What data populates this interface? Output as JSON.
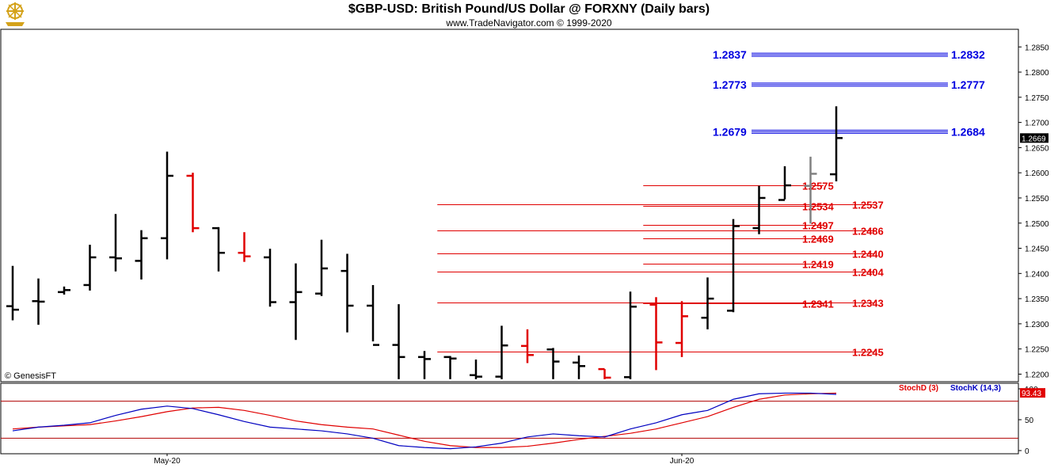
{
  "header": {
    "title": "$GBP-USD:  British Pound/US Dollar @ FORXNY  (Daily bars)",
    "copyright": "www.TradeNavigator.com © 1999-2020"
  },
  "watermark": "© GenesisFT",
  "logo_icon": "gold-ship-wheel-icon",
  "colors": {
    "up_bar": "#000000",
    "down_bar": "#e00000",
    "neutral_bar": "#808080",
    "blue_levels": "#0000e0",
    "red_levels": "#e00000",
    "stoch_d": "#e00000",
    "stoch_k": "#0000c0"
  },
  "chart_data": [
    {
      "type": "ohlc",
      "title": "$GBP-USD:  British Pound/US Dollar @ FORXNY  (Daily bars)",
      "x_tick_labels": [
        {
          "label": "May-20",
          "bar_index": 6
        },
        {
          "label": "Jun-20",
          "bar_index": 26
        }
      ],
      "y_axis": {
        "ylim": [
          1.2185,
          1.2885
        ],
        "ticks": [
          "1.2200",
          "1.2250",
          "1.2300",
          "1.2350",
          "1.2400",
          "1.2450",
          "1.2500",
          "1.2550",
          "1.2600",
          "1.2650",
          "1.2700",
          "1.2750",
          "1.2800",
          "1.2850"
        ]
      },
      "last_price_label": "1.2669",
      "bars": [
        {
          "o": 1.2335,
          "h": 1.2415,
          "l": 1.2307,
          "c": 1.2328,
          "color": "up"
        },
        {
          "o": 1.2345,
          "h": 1.239,
          "l": 1.2298,
          "c": 1.2344,
          "color": "up"
        },
        {
          "o": 1.2363,
          "h": 1.2374,
          "l": 1.2358,
          "c": 1.2367,
          "color": "up"
        },
        {
          "o": 1.2377,
          "h": 1.2457,
          "l": 1.2366,
          "c": 1.2432,
          "color": "up"
        },
        {
          "o": 1.2432,
          "h": 1.2518,
          "l": 1.2404,
          "c": 1.243,
          "color": "up"
        },
        {
          "o": 1.2425,
          "h": 1.2486,
          "l": 1.2388,
          "c": 1.247,
          "color": "up"
        },
        {
          "o": 1.247,
          "h": 1.2642,
          "l": 1.2428,
          "c": 1.2594,
          "color": "up"
        },
        {
          "o": 1.2594,
          "h": 1.26,
          "l": 1.2482,
          "c": 1.249,
          "color": "down"
        },
        {
          "o": 1.249,
          "h": 1.2492,
          "l": 1.2404,
          "c": 1.2441,
          "color": "up"
        },
        {
          "o": 1.2441,
          "h": 1.2482,
          "l": 1.2423,
          "c": 1.2434,
          "color": "down"
        },
        {
          "o": 1.2432,
          "h": 1.2449,
          "l": 1.2334,
          "c": 1.2343,
          "color": "up"
        },
        {
          "o": 1.2343,
          "h": 1.242,
          "l": 1.2268,
          "c": 1.2363,
          "color": "up"
        },
        {
          "o": 1.236,
          "h": 1.2467,
          "l": 1.2355,
          "c": 1.241,
          "color": "up"
        },
        {
          "o": 1.2405,
          "h": 1.2439,
          "l": 1.2283,
          "c": 1.2336,
          "color": "up"
        },
        {
          "o": 1.2336,
          "h": 1.2377,
          "l": 1.2265,
          "c": 1.2258,
          "color": "up"
        },
        {
          "o": 1.2258,
          "h": 1.2339,
          "l": 1.219,
          "c": 1.2234,
          "color": "up"
        },
        {
          "o": 1.2234,
          "h": 1.2246,
          "l": 1.219,
          "c": 1.223,
          "color": "up"
        },
        {
          "o": 1.2234,
          "h": 1.2236,
          "l": 1.219,
          "c": 1.2231,
          "color": "up"
        },
        {
          "o": 1.2198,
          "h": 1.2229,
          "l": 1.219,
          "c": 1.2195,
          "color": "up"
        },
        {
          "o": 1.2195,
          "h": 1.2296,
          "l": 1.219,
          "c": 1.2257,
          "color": "up"
        },
        {
          "o": 1.2256,
          "h": 1.2289,
          "l": 1.2222,
          "c": 1.2238,
          "color": "down"
        },
        {
          "o": 1.2249,
          "h": 1.2252,
          "l": 1.219,
          "c": 1.2225,
          "color": "up"
        },
        {
          "o": 1.2223,
          "h": 1.2237,
          "l": 1.219,
          "c": 1.2216,
          "color": "up"
        },
        {
          "o": 1.221,
          "h": 1.221,
          "l": 1.219,
          "c": 1.2193,
          "color": "down"
        },
        {
          "o": 1.2194,
          "h": 1.2364,
          "l": 1.219,
          "c": 1.2334,
          "color": "up"
        },
        {
          "o": 1.2338,
          "h": 1.2353,
          "l": 1.2208,
          "c": 1.2263,
          "color": "down"
        },
        {
          "o": 1.2262,
          "h": 1.2345,
          "l": 1.2234,
          "c": 1.2315,
          "color": "down"
        },
        {
          "o": 1.2312,
          "h": 1.2392,
          "l": 1.2289,
          "c": 1.235,
          "color": "up"
        },
        {
          "o": 1.2326,
          "h": 1.2508,
          "l": 1.2323,
          "c": 1.2494,
          "color": "up"
        },
        {
          "o": 1.249,
          "h": 1.2574,
          "l": 1.2478,
          "c": 1.255,
          "color": "up"
        },
        {
          "o": 1.2546,
          "h": 1.2613,
          "l": 1.2547,
          "c": 1.2575,
          "color": "up"
        },
        {
          "o": 1.2574,
          "h": 1.2632,
          "l": 1.2499,
          "c": 1.2598,
          "color": "neutral"
        },
        {
          "o": 1.2597,
          "h": 1.2732,
          "l": 1.2583,
          "c": 1.2669,
          "color": "up"
        }
      ],
      "blue_levels": [
        {
          "left_label": "1.2837",
          "right_label": "1.2832",
          "y1": 1.2837,
          "y2": 1.2832
        },
        {
          "left_label": "1.2773",
          "right_label": "1.2777",
          "y1": 1.2773,
          "y2": 1.2777
        },
        {
          "left_label": "1.2679",
          "right_label": "1.2684",
          "y1": 1.2679,
          "y2": 1.2684
        }
      ],
      "red_levels": [
        {
          "value": 1.2575,
          "label": "1.2575",
          "from_bar": 24.5,
          "to_bar": 31.5,
          "label_side": "near"
        },
        {
          "value": 1.2534,
          "label": "1.2534",
          "from_bar": 24.5,
          "to_bar": 31.5,
          "label_side": "near"
        },
        {
          "value": 1.2537,
          "label": "1.2537",
          "from_bar": 16.5,
          "to_bar": 33.5,
          "label_side": "far"
        },
        {
          "value": 1.2497,
          "label": "1.2497",
          "from_bar": 24.5,
          "to_bar": 31.5,
          "label_side": "near"
        },
        {
          "value": 1.2486,
          "label": "1.2486",
          "from_bar": 16.5,
          "to_bar": 33.5,
          "label_side": "far"
        },
        {
          "value": 1.2469,
          "label": "1.2469",
          "from_bar": 24.5,
          "to_bar": 31.5,
          "label_side": "near"
        },
        {
          "value": 1.244,
          "label": "1.2440",
          "from_bar": 16.5,
          "to_bar": 33.5,
          "label_side": "far"
        },
        {
          "value": 1.2419,
          "label": "1.2419",
          "from_bar": 24.5,
          "to_bar": 31.5,
          "label_side": "near"
        },
        {
          "value": 1.2404,
          "label": "1.2404",
          "from_bar": 16.5,
          "to_bar": 33.5,
          "label_side": "far"
        },
        {
          "value": 1.2341,
          "label": "1.2341",
          "from_bar": 24.5,
          "to_bar": 31.5,
          "label_side": "near"
        },
        {
          "value": 1.2343,
          "label": "1.2343",
          "from_bar": 16.5,
          "to_bar": 33.5,
          "label_side": "far"
        },
        {
          "value": 1.2245,
          "label": "1.2245",
          "from_bar": 16.5,
          "to_bar": 33.5,
          "label_side": "far"
        }
      ]
    },
    {
      "type": "line",
      "title": "",
      "legend": [
        {
          "name": "StochD (3)"
        },
        {
          "name": "StochK (14,3)"
        }
      ],
      "y_axis": {
        "ylim": [
          0,
          100
        ],
        "ticks": [
          "0",
          "50",
          "100"
        ]
      },
      "last_value_label": "93.43",
      "series": [
        {
          "name": "StochD (3)",
          "values": [
            35,
            38,
            40,
            42,
            48,
            55,
            63,
            69,
            70,
            65,
            57,
            48,
            42,
            38,
            35,
            25,
            15,
            8,
            5,
            5,
            7,
            12,
            18,
            23,
            28,
            35,
            45,
            55,
            70,
            83,
            90,
            92,
            93
          ]
        },
        {
          "name": "StochK (14,3)",
          "values": [
            32,
            38,
            41,
            45,
            57,
            67,
            72,
            68,
            58,
            47,
            38,
            35,
            32,
            27,
            20,
            8,
            5,
            3,
            6,
            12,
            22,
            27,
            24,
            22,
            35,
            45,
            58,
            65,
            83,
            92,
            93,
            93,
            91
          ]
        }
      ]
    }
  ]
}
